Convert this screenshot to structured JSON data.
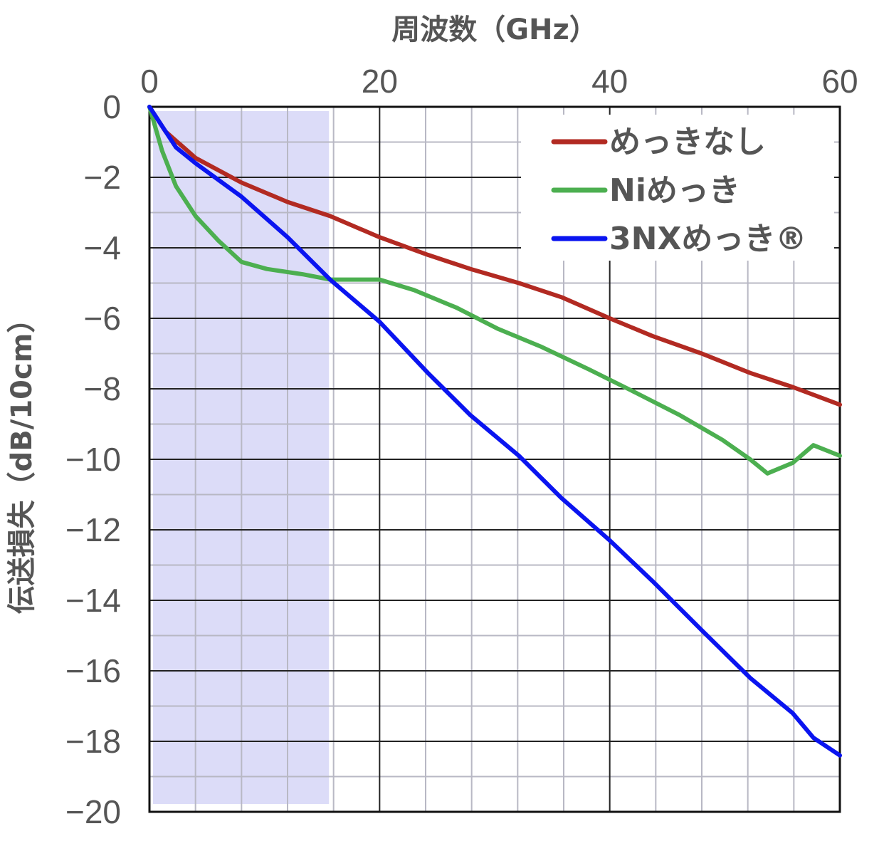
{
  "chart_data": {
    "type": "line",
    "xlabel": "周波数（GHz）",
    "ylabel": "伝送損失（dB/10cm）",
    "xlim": [
      0,
      60
    ],
    "ylim": [
      -20,
      0
    ],
    "x_ticks": [
      "0",
      "20",
      "40",
      "60"
    ],
    "x_tick_values": [
      0,
      20,
      40,
      60
    ],
    "y_ticks": [
      "0",
      "−2",
      "−4",
      "−6",
      "−8",
      "−10",
      "−12",
      "−14",
      "−16",
      "−18",
      "−20"
    ],
    "y_tick_values": [
      0,
      -2,
      -4,
      -6,
      -8,
      -10,
      -12,
      -14,
      -16,
      -18,
      -20
    ],
    "grid": true,
    "legend_position": "top-right",
    "shaded_region": {
      "x_range": [
        0,
        15.6
      ],
      "color": "#dcdcf8"
    },
    "series": [
      {
        "name": "めっきなし",
        "color": "#b22a22",
        "x": [
          0,
          1.4,
          4,
          8,
          12,
          15.7,
          20,
          24.2,
          27.9,
          32.1,
          35.8,
          40,
          43.7,
          48,
          52.2,
          55.9,
          60
        ],
        "y": [
          0,
          -0.7,
          -1.45,
          -2.15,
          -2.7,
          -3.1,
          -3.7,
          -4.2,
          -4.6,
          -5.0,
          -5.4,
          -6.0,
          -6.5,
          -7.0,
          -7.55,
          -7.95,
          -8.45
        ]
      },
      {
        "name": "Niめっき",
        "color": "#4caf50",
        "x": [
          0,
          1.1,
          2.3,
          4,
          6,
          8,
          10.2,
          13.3,
          15.7,
          20,
          23,
          26.7,
          30.3,
          34,
          38.2,
          41.9,
          46.1,
          49.8,
          52.2,
          53.7,
          55.9,
          57.7,
          60
        ],
        "y": [
          0,
          -1.25,
          -2.25,
          -3.1,
          -3.8,
          -4.4,
          -4.6,
          -4.75,
          -4.9,
          -4.9,
          -5.2,
          -5.7,
          -6.3,
          -6.8,
          -7.45,
          -8.05,
          -8.75,
          -9.45,
          -10.0,
          -10.4,
          -10.1,
          -9.6,
          -9.9
        ]
      },
      {
        "name": "3NXめっき®",
        "color": "#0a14f0",
        "x": [
          0,
          2.3,
          4,
          8,
          12,
          15.7,
          20,
          24.2,
          27.9,
          32.1,
          35.8,
          40,
          43.7,
          48,
          52.2,
          55.9,
          57.7,
          60
        ],
        "y": [
          0,
          -1.15,
          -1.6,
          -2.55,
          -3.7,
          -4.9,
          -6.1,
          -7.55,
          -8.75,
          -9.9,
          -11.1,
          -12.3,
          -13.45,
          -14.85,
          -16.2,
          -17.2,
          -17.9,
          -18.4
        ]
      }
    ]
  }
}
